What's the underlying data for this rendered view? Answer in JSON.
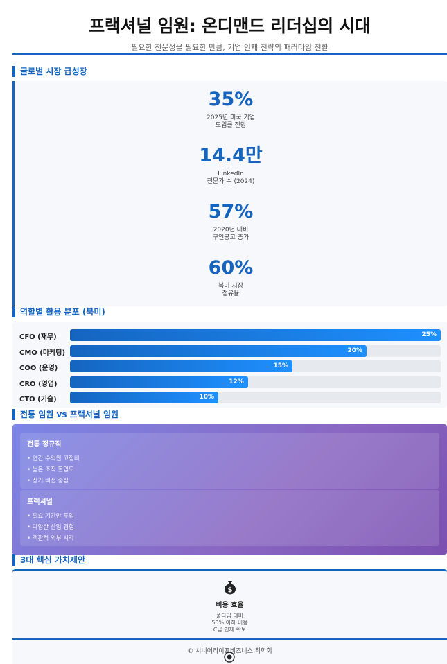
{
  "header": {
    "title": "프랙셔널 임원: 온디맨드 리더십의 시대",
    "subtitle": "필요한 전문성을 필요한 만큼, 기업 인재 전략의 패러다임 전환"
  },
  "sections": {
    "market": "글로벌 시장 급성장",
    "roles": "역할별 활용 분포 (북미)",
    "compare": "전통 임원 vs 프랙셔널 임원",
    "value": "3대 핵심 가치제안"
  },
  "stats": [
    {
      "value": "35%",
      "line1": "2025년 미국 기업",
      "line2": "도입률 전망"
    },
    {
      "value": "14.4만",
      "line1": "LinkedIn",
      "line2": "전문가 수 (2024)"
    },
    {
      "value": "57%",
      "line1": "2020년 대비",
      "line2": "구인공고 증가"
    },
    {
      "value": "60%",
      "line1": "북미 시장",
      "line2": "점유율"
    }
  ],
  "chart_data": {
    "type": "bar",
    "title": "역할별 활용 분포 (북미)",
    "categories": [
      "CFO (재무)",
      "CMO (마케팅)",
      "COO (운영)",
      "CRO (영업)",
      "CTO (기술)"
    ],
    "values": [
      25,
      20,
      15,
      12,
      10
    ],
    "value_labels": [
      "25%",
      "20%",
      "15%",
      "12%",
      "10%"
    ],
    "xlim": [
      0,
      25
    ],
    "orientation": "horizontal"
  },
  "compare": {
    "traditional": {
      "title": "전통 정규직",
      "items": [
        "• 연간 수억원 고정비",
        "• 높은 조직 몰입도",
        "• 장기 비전 중심"
      ]
    },
    "fractional": {
      "title": "프랙셔널",
      "items": [
        "• 필요 기간만 투입",
        "• 다양한 산업 경험",
        "• 객관적 외부 시각"
      ]
    }
  },
  "value_card": {
    "icon": "money-bag-icon",
    "title": "비용 효율",
    "lines": [
      "풀타임 대비",
      "50% 이하 비용",
      "C급 인재 확보"
    ]
  },
  "footer": {
    "copyright": "© 시니어라이프비즈니스 최학회"
  },
  "colors": {
    "accent": "#1565c0",
    "bar_end": "#1e90ff",
    "compare_start": "#7b86e6",
    "compare_end": "#7a4fb0"
  }
}
